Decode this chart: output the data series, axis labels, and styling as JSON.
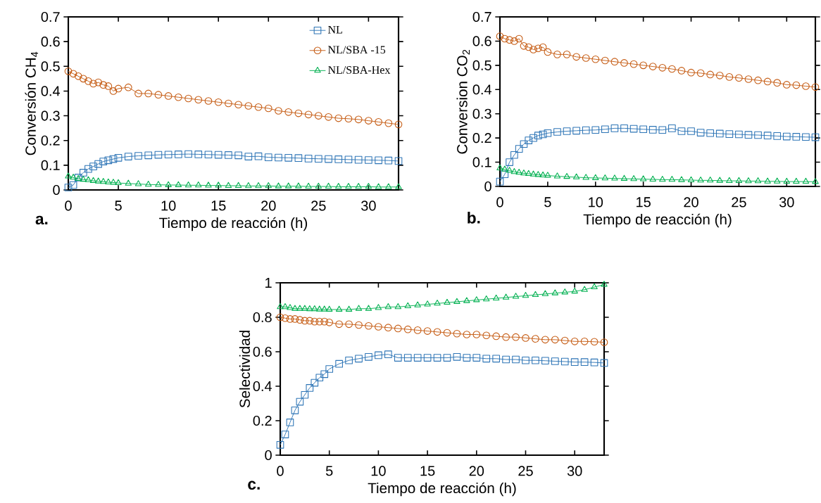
{
  "chart_data": [
    {
      "type": "line",
      "xlabel": "Tiempo de reacción (h)",
      "ylabel": "Conversión CH$_{4}$",
      "annotations": [
        "a."
      ],
      "legend": "top right",
      "line_style": "solid",
      "xlim": [
        0,
        33
      ],
      "ylim": [
        0,
        0.7
      ],
      "xticks": [
        0,
        5,
        10,
        15,
        20,
        25,
        30
      ],
      "yticks": [
        0,
        0.1,
        0.2,
        0.3,
        0.4,
        0.5,
        0.6,
        0.7
      ],
      "x": [
        0,
        0.5,
        1,
        1.5,
        2,
        2.5,
        3,
        3.5,
        4,
        4.5,
        5,
        6,
        7,
        8,
        9,
        10,
        11,
        12,
        13,
        14,
        15,
        16,
        17,
        18,
        19,
        20,
        21,
        22,
        23,
        24,
        25,
        26,
        27,
        28,
        29,
        30,
        31,
        32,
        33
      ],
      "series": [
        {
          "name": "NL",
          "color": "#2e75b6",
          "marker": "square",
          "values": [
            0.01,
            0.02,
            0.05,
            0.07,
            0.085,
            0.095,
            0.105,
            0.115,
            0.12,
            0.125,
            0.13,
            0.135,
            0.138,
            0.14,
            0.142,
            0.143,
            0.144,
            0.145,
            0.144,
            0.143,
            0.142,
            0.141,
            0.14,
            0.135,
            0.136,
            0.132,
            0.131,
            0.13,
            0.129,
            0.127,
            0.126,
            0.125,
            0.124,
            0.123,
            0.122,
            0.121,
            0.12,
            0.119,
            0.117
          ]
        },
        {
          "name": "NL/SBA -15",
          "color": "#c55a11",
          "marker": "circle",
          "values": [
            0.48,
            0.47,
            0.46,
            0.45,
            0.44,
            0.43,
            0.435,
            0.425,
            0.42,
            0.4,
            0.41,
            0.415,
            0.39,
            0.39,
            0.385,
            0.38,
            0.375,
            0.37,
            0.365,
            0.36,
            0.355,
            0.35,
            0.345,
            0.34,
            0.335,
            0.33,
            0.32,
            0.315,
            0.31,
            0.305,
            0.3,
            0.295,
            0.29,
            0.288,
            0.285,
            0.28,
            0.275,
            0.27,
            0.265
          ]
        },
        {
          "name": "NL/SBA-Hex",
          "color": "#00b050",
          "marker": "triangle",
          "values": [
            0.055,
            0.05,
            0.045,
            0.042,
            0.04,
            0.037,
            0.035,
            0.033,
            0.031,
            0.03,
            0.028,
            0.026,
            0.024,
            0.022,
            0.021,
            0.02,
            0.02,
            0.019,
            0.019,
            0.018,
            0.018,
            0.017,
            0.017,
            0.016,
            0.016,
            0.016,
            0.015,
            0.015,
            0.015,
            0.014,
            0.014,
            0.014,
            0.013,
            0.013,
            0.013,
            0.013,
            0.012,
            0.012,
            0.012
          ]
        }
      ]
    },
    {
      "type": "line",
      "xlabel": "Tiempo de reacción (h)",
      "ylabel": "Conversion CO$_{2}$",
      "annotations": [
        "b."
      ],
      "line_style": "solid",
      "xlim": [
        0,
        33
      ],
      "ylim": [
        0,
        0.7
      ],
      "xticks": [
        0,
        5,
        10,
        15,
        20,
        25,
        30
      ],
      "yticks": [
        0,
        0.1,
        0.2,
        0.3,
        0.4,
        0.5,
        0.6,
        0.7
      ],
      "x": [
        0,
        0.5,
        1,
        1.5,
        2,
        2.5,
        3,
        3.5,
        4,
        4.5,
        5,
        6,
        7,
        8,
        9,
        10,
        11,
        12,
        13,
        14,
        15,
        16,
        17,
        18,
        19,
        20,
        21,
        22,
        23,
        24,
        25,
        26,
        27,
        28,
        29,
        30,
        31,
        32,
        33
      ],
      "series": [
        {
          "color": "#2e75b6",
          "marker": "square",
          "values": [
            0.02,
            0.05,
            0.1,
            0.13,
            0.155,
            0.175,
            0.19,
            0.2,
            0.21,
            0.215,
            0.22,
            0.225,
            0.228,
            0.23,
            0.232,
            0.233,
            0.236,
            0.24,
            0.24,
            0.238,
            0.236,
            0.234,
            0.233,
            0.24,
            0.228,
            0.228,
            0.222,
            0.22,
            0.218,
            0.216,
            0.215,
            0.213,
            0.212,
            0.21,
            0.208,
            0.206,
            0.205,
            0.204,
            0.203
          ]
        },
        {
          "color": "#c55a11",
          "marker": "circle",
          "values": [
            0.62,
            0.61,
            0.605,
            0.6,
            0.61,
            0.58,
            0.575,
            0.565,
            0.57,
            0.575,
            0.555,
            0.545,
            0.545,
            0.535,
            0.53,
            0.525,
            0.52,
            0.515,
            0.51,
            0.505,
            0.5,
            0.495,
            0.49,
            0.485,
            0.478,
            0.47,
            0.468,
            0.462,
            0.458,
            0.452,
            0.448,
            0.443,
            0.438,
            0.433,
            0.428,
            0.42,
            0.418,
            0.414,
            0.41
          ]
        },
        {
          "color": "#00b050",
          "marker": "triangle",
          "values": [
            0.075,
            0.07,
            0.065,
            0.06,
            0.057,
            0.054,
            0.052,
            0.05,
            0.048,
            0.046,
            0.045,
            0.042,
            0.04,
            0.038,
            0.036,
            0.035,
            0.034,
            0.033,
            0.032,
            0.031,
            0.03,
            0.029,
            0.028,
            0.028,
            0.027,
            0.026,
            0.025,
            0.025,
            0.024,
            0.023,
            0.023,
            0.022,
            0.022,
            0.021,
            0.021,
            0.02,
            0.02,
            0.02,
            0.019
          ]
        }
      ]
    },
    {
      "type": "line",
      "xlabel": "Tiempo de reacción (h)",
      "ylabel": "Selectividad",
      "annotations": [
        "c."
      ],
      "line_style": "solid",
      "xlim": [
        0,
        33
      ],
      "ylim": [
        0,
        1
      ],
      "xticks": [
        0,
        5,
        10,
        15,
        20,
        25,
        30
      ],
      "yticks": [
        0,
        0.2,
        0.4,
        0.6,
        0.8,
        1
      ],
      "x": [
        0,
        0.5,
        1,
        1.5,
        2,
        2.5,
        3,
        3.5,
        4,
        4.5,
        5,
        6,
        7,
        8,
        9,
        10,
        11,
        12,
        13,
        14,
        15,
        16,
        17,
        18,
        19,
        20,
        21,
        22,
        23,
        24,
        25,
        26,
        27,
        28,
        29,
        30,
        31,
        32,
        33
      ],
      "series": [
        {
          "color": "#2e75b6",
          "marker": "square",
          "values": [
            0.06,
            0.12,
            0.19,
            0.26,
            0.31,
            0.35,
            0.39,
            0.42,
            0.45,
            0.47,
            0.5,
            0.53,
            0.55,
            0.56,
            0.57,
            0.58,
            0.585,
            0.565,
            0.565,
            0.565,
            0.565,
            0.565,
            0.565,
            0.57,
            0.565,
            0.565,
            0.56,
            0.56,
            0.555,
            0.555,
            0.55,
            0.55,
            0.548,
            0.545,
            0.543,
            0.54,
            0.54,
            0.538,
            0.535
          ]
        },
        {
          "color": "#c55a11",
          "marker": "circle",
          "values": [
            0.8,
            0.795,
            0.79,
            0.79,
            0.785,
            0.78,
            0.78,
            0.775,
            0.775,
            0.775,
            0.77,
            0.76,
            0.76,
            0.755,
            0.75,
            0.745,
            0.74,
            0.735,
            0.73,
            0.725,
            0.72,
            0.715,
            0.71,
            0.705,
            0.7,
            0.7,
            0.695,
            0.69,
            0.685,
            0.685,
            0.68,
            0.675,
            0.67,
            0.67,
            0.665,
            0.66,
            0.66,
            0.658,
            0.655
          ]
        },
        {
          "color": "#00b050",
          "marker": "triangle",
          "values": [
            0.86,
            0.86,
            0.855,
            0.85,
            0.85,
            0.85,
            0.848,
            0.848,
            0.846,
            0.846,
            0.845,
            0.845,
            0.845,
            0.85,
            0.85,
            0.855,
            0.86,
            0.86,
            0.865,
            0.87,
            0.875,
            0.88,
            0.885,
            0.89,
            0.895,
            0.9,
            0.905,
            0.91,
            0.915,
            0.92,
            0.925,
            0.93,
            0.935,
            0.94,
            0.945,
            0.95,
            0.96,
            0.975,
            0.99
          ]
        }
      ]
    }
  ]
}
